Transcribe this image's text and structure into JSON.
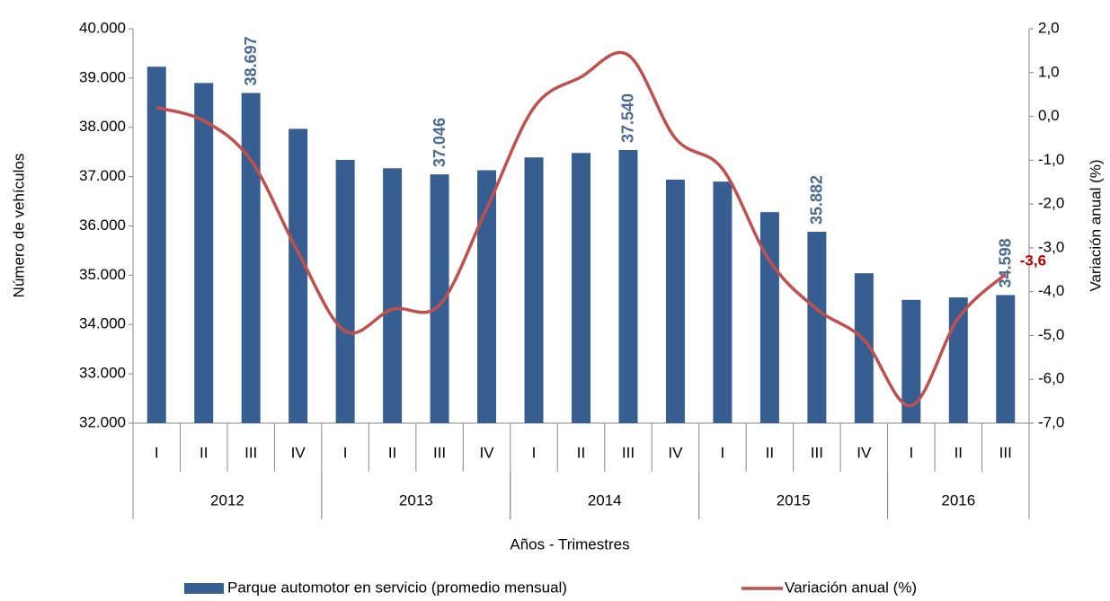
{
  "chart_data": {
    "type": "bar-line",
    "x_title": "Años - Trimestres",
    "y_title": "Número de vehículos",
    "y2_title": "Variación anual (%)",
    "categories": [
      "I",
      "II",
      "III",
      "IV",
      "I",
      "II",
      "III",
      "IV",
      "I",
      "II",
      "III",
      "IV",
      "I",
      "II",
      "III",
      "IV",
      "I",
      "II",
      "III"
    ],
    "groups": [
      {
        "label": "2012",
        "count": 4
      },
      {
        "label": "2013",
        "count": 4
      },
      {
        "label": "2014",
        "count": 4
      },
      {
        "label": "2015",
        "count": 4
      },
      {
        "label": "2016",
        "count": 3
      }
    ],
    "series": [
      {
        "name": "Parque automotor en servicio (promedio mensual)",
        "type": "bar",
        "color": "#375e91",
        "values": [
          39230,
          38900,
          38697,
          37970,
          37340,
          37170,
          37046,
          37130,
          37390,
          37480,
          37540,
          36940,
          36900,
          36280,
          35882,
          35040,
          34500,
          34550,
          34598
        ],
        "value_labels": [
          null,
          null,
          "38.697",
          null,
          null,
          null,
          "37.046",
          null,
          null,
          null,
          "37.540",
          null,
          null,
          null,
          "35.882",
          null,
          null,
          null,
          "34.598"
        ]
      },
      {
        "name": "Variación anual (%)",
        "type": "line",
        "axis": "y2",
        "color": "#c0504d",
        "values": [
          0.2,
          -0.1,
          -1.0,
          -3.1,
          -4.9,
          -4.4,
          -4.3,
          -2.1,
          0.2,
          0.9,
          1.4,
          -0.5,
          -1.2,
          -3.3,
          -4.4,
          -5.1,
          -6.6,
          -4.6,
          -3.6
        ],
        "value_labels": [
          null,
          null,
          null,
          null,
          null,
          null,
          null,
          null,
          null,
          null,
          null,
          null,
          null,
          null,
          null,
          null,
          null,
          null,
          "-3,6"
        ]
      }
    ],
    "ylim": [
      32000,
      40000
    ],
    "yticks": [
      {
        "value": 32000,
        "label": "32.000"
      },
      {
        "value": 33000,
        "label": "33.000"
      },
      {
        "value": 34000,
        "label": "34.000"
      },
      {
        "value": 35000,
        "label": "35.000"
      },
      {
        "value": 36000,
        "label": "36.000"
      },
      {
        "value": 37000,
        "label": "37.000"
      },
      {
        "value": 38000,
        "label": "38.000"
      },
      {
        "value": 39000,
        "label": "39.000"
      },
      {
        "value": 40000,
        "label": "40.000"
      }
    ],
    "y2lim": [
      -7,
      2
    ],
    "y2ticks": [
      {
        "value": -7,
        "label": "-7,0"
      },
      {
        "value": -6,
        "label": "-6,0"
      },
      {
        "value": -5,
        "label": "-5,0"
      },
      {
        "value": -4,
        "label": "-4,0"
      },
      {
        "value": -3,
        "label": "-3,0"
      },
      {
        "value": -2,
        "label": "-2,0"
      },
      {
        "value": -1,
        "label": "-1,0"
      },
      {
        "value": 0,
        "label": "0,0"
      },
      {
        "value": 1,
        "label": "1,0"
      },
      {
        "value": 2,
        "label": "2,0"
      }
    ],
    "legend": "bottom"
  }
}
